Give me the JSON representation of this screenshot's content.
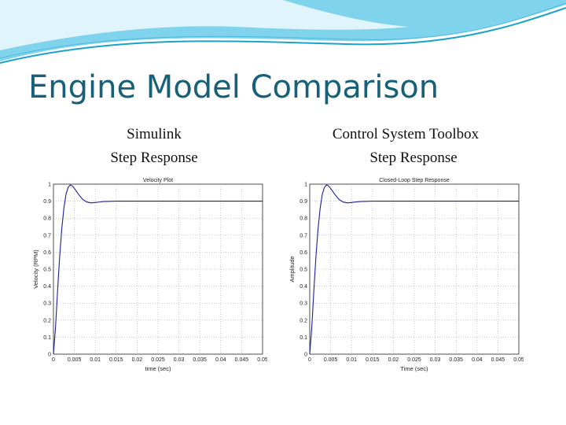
{
  "slide": {
    "title": "Engine Model Comparison",
    "left_caption_line1": "Simulink",
    "left_caption_line2": "Step Response",
    "right_caption_line1": "Control System Toolbox",
    "right_caption_line2": "Step Response"
  },
  "colors": {
    "title": "#17607a",
    "line": "#1b1f9e",
    "wave_dark": "#1aa3c9",
    "wave_light": "#a6e2f2"
  },
  "chart_data": [
    {
      "type": "line",
      "title": "Velocity Plot",
      "xlabel": "time (sec)",
      "ylabel": "Velocity (RPM)",
      "xlim": [
        0,
        0.05
      ],
      "ylim": [
        0,
        1
      ],
      "xticks": [
        "0",
        "0.005",
        "0.01",
        "0.015",
        "0.02",
        "0.025",
        "0.03",
        "0.035",
        "0.04",
        "0.045",
        "0.05"
      ],
      "yticks": [
        "0",
        "0.1",
        "0.2",
        "0.3",
        "0.4",
        "0.5",
        "0.6",
        "0.7",
        "0.8",
        "0.9",
        "1"
      ],
      "grid": true,
      "series": [
        {
          "x": [
            0,
            0.0005,
            0.001,
            0.0015,
            0.002,
            0.0025,
            0.003,
            0.0035,
            0.004,
            0.0045,
            0.005,
            0.006,
            0.007,
            0.008,
            0.009,
            0.01,
            0.012,
            0.015,
            0.02,
            0.03,
            0.04,
            0.05
          ],
          "y": [
            0,
            0.16,
            0.38,
            0.58,
            0.74,
            0.86,
            0.94,
            0.98,
            0.995,
            0.99,
            0.975,
            0.94,
            0.91,
            0.895,
            0.89,
            0.892,
            0.898,
            0.9,
            0.9,
            0.9,
            0.9,
            0.9
          ]
        }
      ]
    },
    {
      "type": "line",
      "title": "Closed-Loop Step Response",
      "xlabel": "Time (sec)",
      "ylabel": "Amplitude",
      "xlim": [
        0,
        0.05
      ],
      "ylim": [
        0,
        1
      ],
      "xticks": [
        "0",
        "0.005",
        "0.01",
        "0.015",
        "0.02",
        "0.025",
        "0.03",
        "0.035",
        "0.04",
        "0.045",
        "0.05"
      ],
      "yticks": [
        "0",
        "0.1",
        "0.2",
        "0.3",
        "0.4",
        "0.5",
        "0.6",
        "0.7",
        "0.8",
        "0.9",
        "1"
      ],
      "grid": true,
      "series": [
        {
          "x": [
            0,
            0.0005,
            0.001,
            0.0015,
            0.002,
            0.0025,
            0.003,
            0.0035,
            0.004,
            0.0045,
            0.005,
            0.006,
            0.007,
            0.008,
            0.009,
            0.01,
            0.012,
            0.015,
            0.02,
            0.03,
            0.04,
            0.05
          ],
          "y": [
            0,
            0.16,
            0.38,
            0.58,
            0.74,
            0.86,
            0.94,
            0.98,
            0.995,
            0.99,
            0.975,
            0.94,
            0.91,
            0.895,
            0.89,
            0.892,
            0.898,
            0.9,
            0.9,
            0.9,
            0.9,
            0.9
          ]
        }
      ]
    }
  ]
}
